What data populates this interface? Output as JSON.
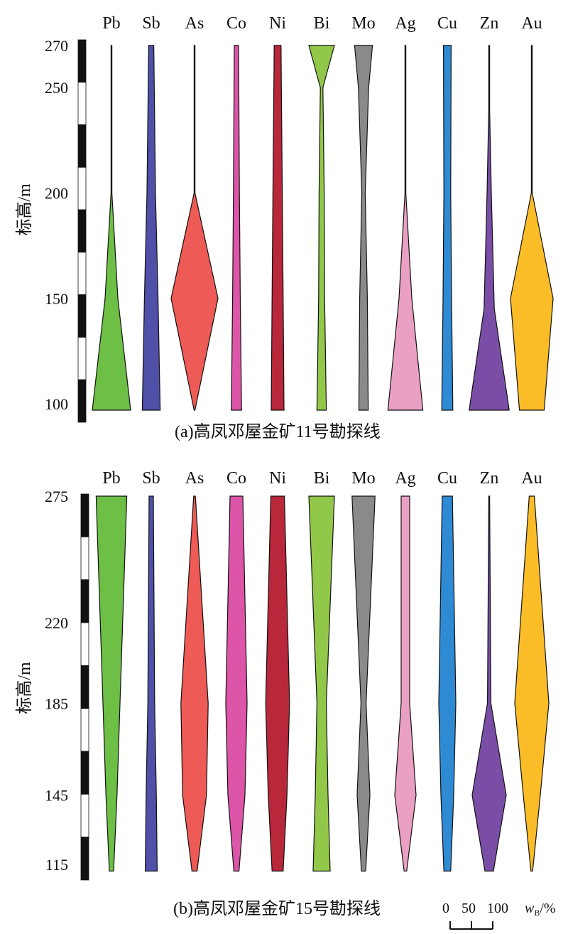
{
  "chart_data": [
    {
      "type": "area",
      "caption": "(a)高凤邓屋金矿11号勘探线",
      "ylabel": "标高/m",
      "yticks": [
        100,
        150,
        200,
        250,
        270
      ],
      "ylim": [
        97,
        272
      ],
      "legend": "none",
      "grid": false,
      "elements": [
        "Pb",
        "Sb",
        "As",
        "Co",
        "Ni",
        "Bi",
        "Mo",
        "Ag",
        "Cu",
        "Zn",
        "Au"
      ],
      "colors": {
        "Pb": "#6dbf45",
        "Sb": "#5050a8",
        "As": "#ee5a55",
        "Co": "#dd55a8",
        "Ni": "#b8273a",
        "Bi": "#92c84a",
        "Mo": "#8a8a8a",
        "Ag": "#eaa0c2",
        "Cu": "#2f8ad4",
        "Zn": "#7a4ea6",
        "Au": "#fbbd27"
      },
      "series": [
        {
          "name": "Pb",
          "elevation": [
            97,
            150,
            200,
            270
          ],
          "width": [
            90,
            30,
            2,
            1
          ]
        },
        {
          "name": "Sb",
          "elevation": [
            97,
            150,
            200,
            270
          ],
          "width": [
            42,
            32,
            20,
            12
          ]
        },
        {
          "name": "As",
          "elevation": [
            97,
            150,
            200,
            270
          ],
          "width": [
            2,
            110,
            2,
            1
          ]
        },
        {
          "name": "Co",
          "elevation": [
            97,
            150,
            200,
            270
          ],
          "width": [
            24,
            18,
            14,
            10
          ]
        },
        {
          "name": "Ni",
          "elevation": [
            97,
            150,
            200,
            270
          ],
          "width": [
            30,
            26,
            22,
            16
          ]
        },
        {
          "name": "Bi",
          "elevation": [
            97,
            150,
            200,
            250,
            270
          ],
          "width": [
            22,
            14,
            12,
            6,
            60
          ]
        },
        {
          "name": "Mo",
          "elevation": [
            97,
            150,
            200,
            250,
            270
          ],
          "width": [
            22,
            18,
            8,
            24,
            42
          ]
        },
        {
          "name": "Ag",
          "elevation": [
            97,
            150,
            200,
            270
          ],
          "width": [
            82,
            30,
            2,
            1
          ]
        },
        {
          "name": "Cu",
          "elevation": [
            97,
            150,
            200,
            270
          ],
          "width": [
            26,
            20,
            16,
            18
          ]
        },
        {
          "name": "Zn",
          "elevation": [
            97,
            145,
            200,
            240,
            270
          ],
          "width": [
            94,
            24,
            10,
            1,
            1
          ]
        },
        {
          "name": "Au",
          "elevation": [
            97,
            150,
            200,
            270
          ],
          "width": [
            58,
            100,
            2,
            1
          ]
        }
      ]
    },
    {
      "type": "area",
      "caption": "(b)高凤邓屋金矿15号勘探线",
      "ylabel": "标高/m",
      "yticks": [
        115,
        145,
        185,
        220,
        275
      ],
      "ylim": [
        110,
        275
      ],
      "legend": "none",
      "grid": false,
      "elements": [
        "Pb",
        "Sb",
        "As",
        "Co",
        "Ni",
        "Bi",
        "Mo",
        "Ag",
        "Cu",
        "Zn",
        "Au"
      ],
      "colors": {
        "Pb": "#6dbf45",
        "Sb": "#5050a8",
        "As": "#ee5a55",
        "Co": "#dd55a8",
        "Ni": "#b8273a",
        "Bi": "#92c84a",
        "Mo": "#8a8a8a",
        "Ag": "#eaa0c2",
        "Cu": "#2f8ad4",
        "Zn": "#7a4ea6",
        "Au": "#fbbd27"
      },
      "series": [
        {
          "name": "Pb",
          "elevation": [
            112,
            145,
            185,
            275
          ],
          "width": [
            10,
            26,
            40,
            72
          ]
        },
        {
          "name": "Sb",
          "elevation": [
            112,
            145,
            185,
            275
          ],
          "width": [
            28,
            24,
            16,
            10
          ]
        },
        {
          "name": "As",
          "elevation": [
            112,
            145,
            185,
            275
          ],
          "width": [
            12,
            56,
            64,
            4
          ]
        },
        {
          "name": "Co",
          "elevation": [
            112,
            145,
            185,
            275
          ],
          "width": [
            12,
            40,
            50,
            30
          ]
        },
        {
          "name": "Ni",
          "elevation": [
            112,
            145,
            185,
            275
          ],
          "width": [
            26,
            44,
            56,
            32
          ]
        },
        {
          "name": "Bi",
          "elevation": [
            112,
            145,
            185,
            275
          ],
          "width": [
            40,
            30,
            22,
            60
          ]
        },
        {
          "name": "Mo",
          "elevation": [
            112,
            145,
            185,
            275
          ],
          "width": [
            10,
            30,
            12,
            54
          ]
        },
        {
          "name": "Ag",
          "elevation": [
            112,
            145,
            185,
            275
          ],
          "width": [
            6,
            50,
            20,
            20
          ]
        },
        {
          "name": "Cu",
          "elevation": [
            112,
            145,
            185,
            275
          ],
          "width": [
            16,
            30,
            40,
            24
          ]
        },
        {
          "name": "Zn",
          "elevation": [
            112,
            145,
            185,
            275
          ],
          "width": [
            20,
            80,
            8,
            1
          ]
        },
        {
          "name": "Au",
          "elevation": [
            112,
            145,
            185,
            275
          ],
          "width": [
            4,
            40,
            80,
            12
          ]
        }
      ]
    }
  ],
  "scale_bar": {
    "label_0": "0",
    "label_50": "50",
    "label_100": "100",
    "unit_main": "w",
    "unit_sub": "B",
    "unit_tail": "/%"
  }
}
